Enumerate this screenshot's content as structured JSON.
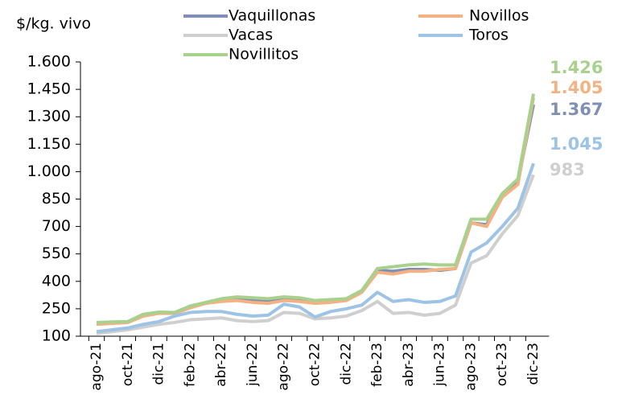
{
  "chart_data": {
    "type": "line",
    "y_label": "$/kg. vivo",
    "categories": [
      "ago-21",
      null,
      "oct-21",
      null,
      "dic-21",
      null,
      "feb-22",
      null,
      "abr-22",
      null,
      "jun-22",
      null,
      "ago-22",
      null,
      "oct-22",
      null,
      "dic-22",
      null,
      "feb-23",
      null,
      "abr-23",
      null,
      "jun-23",
      null,
      "ago-23",
      null,
      "oct-23",
      null,
      "dic-23"
    ],
    "series": [
      {
        "name": "Vaquillonas",
        "color": "#7f8fb5",
        "values": [
          170,
          175,
          180,
          215,
          228,
          228,
          260,
          280,
          295,
          300,
          295,
          292,
          300,
          300,
          285,
          290,
          300,
          345,
          460,
          455,
          465,
          465,
          460,
          470,
          720,
          710,
          870,
          945,
          1367
        ],
        "value_labels": [
          null,
          null,
          null,
          null,
          null,
          null,
          null,
          null,
          null,
          null,
          null,
          null,
          null,
          null,
          null,
          null,
          null,
          null,
          null,
          null,
          null,
          null,
          null,
          null,
          null,
          null,
          null,
          null,
          "1.367"
        ]
      },
      {
        "name": "Novillos",
        "color": "#f4b183",
        "values": [
          165,
          170,
          175,
          210,
          225,
          225,
          255,
          280,
          290,
          295,
          285,
          280,
          295,
          290,
          280,
          285,
          295,
          340,
          450,
          440,
          455,
          455,
          465,
          470,
          720,
          700,
          860,
          930,
          1405
        ],
        "value_labels": [
          null,
          null,
          null,
          null,
          null,
          null,
          null,
          null,
          null,
          null,
          null,
          null,
          null,
          null,
          null,
          null,
          null,
          null,
          null,
          null,
          null,
          null,
          null,
          null,
          null,
          null,
          null,
          null,
          "1.405"
        ]
      },
      {
        "name": "Vacas",
        "color": "#cfcfcf",
        "values": [
          115,
          125,
          135,
          150,
          165,
          175,
          190,
          195,
          200,
          185,
          180,
          185,
          230,
          225,
          195,
          200,
          210,
          240,
          290,
          225,
          230,
          215,
          225,
          270,
          500,
          540,
          660,
          760,
          983
        ],
        "value_labels": [
          null,
          null,
          null,
          null,
          null,
          null,
          null,
          null,
          null,
          null,
          null,
          null,
          null,
          null,
          null,
          null,
          null,
          null,
          null,
          null,
          null,
          null,
          null,
          null,
          null,
          null,
          null,
          null,
          "983"
        ]
      },
      {
        "name": "Toros",
        "color": "#9dc3e6",
        "values": [
          125,
          135,
          145,
          165,
          180,
          210,
          230,
          235,
          235,
          220,
          210,
          215,
          275,
          260,
          205,
          235,
          250,
          270,
          340,
          290,
          300,
          285,
          290,
          320,
          560,
          610,
          700,
          800,
          1045
        ],
        "value_labels": [
          null,
          null,
          null,
          null,
          null,
          null,
          null,
          null,
          null,
          null,
          null,
          null,
          null,
          null,
          null,
          null,
          null,
          null,
          null,
          null,
          null,
          null,
          null,
          null,
          null,
          null,
          null,
          null,
          "1.045"
        ]
      },
      {
        "name": "Novillitos",
        "color": "#a9d18e",
        "values": [
          175,
          178,
          180,
          220,
          232,
          230,
          265,
          285,
          305,
          315,
          310,
          305,
          315,
          310,
          295,
          300,
          305,
          350,
          470,
          480,
          490,
          495,
          490,
          490,
          740,
          740,
          880,
          960,
          1426
        ],
        "value_labels": [
          null,
          null,
          null,
          null,
          null,
          null,
          null,
          null,
          null,
          null,
          null,
          null,
          null,
          null,
          null,
          null,
          null,
          null,
          null,
          null,
          null,
          null,
          null,
          null,
          null,
          null,
          null,
          null,
          "1.426"
        ]
      }
    ],
    "ylim": [
      100,
      1600
    ],
    "yticks": [
      100,
      250,
      400,
      550,
      700,
      850,
      {
        "value": 1000,
        "label": "1.000"
      },
      {
        "value": 1150,
        "label": "1.150"
      },
      {
        "value": 1300,
        "label": "1.300"
      },
      {
        "value": 1450,
        "label": "1.450"
      },
      {
        "value": 1600,
        "label": "1.600"
      }
    ],
    "grid": false
  }
}
